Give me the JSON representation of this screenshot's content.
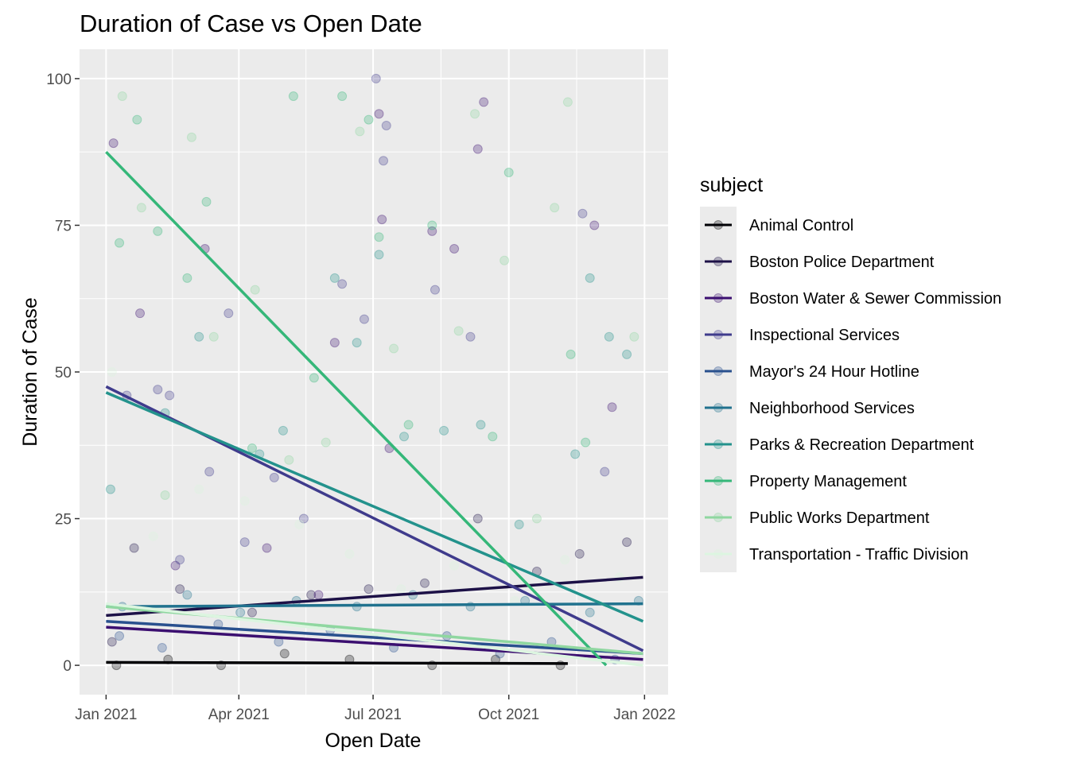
{
  "chart_data": {
    "type": "scatter",
    "title": "Duration of Case vs Open Date",
    "xlabel": "Open Date",
    "ylabel": "Duration of Case",
    "xlim": [
      "2020-12-14",
      "2022-01-17"
    ],
    "ylim": [
      -5,
      105
    ],
    "x_ticks": [
      {
        "date": "2021-01-01",
        "label": "Jan 2021"
      },
      {
        "date": "2021-04-01",
        "label": "Apr 2021"
      },
      {
        "date": "2021-07-01",
        "label": "Jul 2021"
      },
      {
        "date": "2021-10-01",
        "label": "Oct 2021"
      },
      {
        "date": "2022-01-01",
        "label": "Jan 2022"
      }
    ],
    "y_ticks": [
      0,
      25,
      50,
      75,
      100
    ],
    "grid": true,
    "legend": {
      "title": "subject",
      "position": "right"
    },
    "series": [
      {
        "name": "Animal Control",
        "color": "#000004",
        "trend": [
          [
            "2021-01-01",
            0.5
          ],
          [
            "2021-11-10",
            0.3
          ]
        ],
        "points": [
          [
            "2021-01-08",
            0
          ],
          [
            "2021-02-12",
            1
          ],
          [
            "2021-03-20",
            0
          ],
          [
            "2021-05-02",
            2
          ],
          [
            "2021-06-15",
            1
          ],
          [
            "2021-08-10",
            0
          ],
          [
            "2021-09-22",
            1
          ],
          [
            "2021-11-05",
            0
          ]
        ]
      },
      {
        "name": "Boston Police Department",
        "color": "#1D1147",
        "trend": [
          [
            "2021-01-01",
            8.5
          ],
          [
            "2021-12-31",
            15
          ]
        ],
        "points": [
          [
            "2021-01-05",
            4
          ],
          [
            "2021-01-20",
            20
          ],
          [
            "2021-02-20",
            13
          ],
          [
            "2021-04-10",
            9
          ],
          [
            "2021-05-20",
            12
          ],
          [
            "2021-06-28",
            13
          ],
          [
            "2021-08-05",
            14
          ],
          [
            "2021-09-10",
            25
          ],
          [
            "2021-10-20",
            16
          ],
          [
            "2021-11-18",
            19
          ],
          [
            "2021-12-20",
            21
          ]
        ]
      },
      {
        "name": "Boston Water & Sewer Commission",
        "color": "#3B0F70",
        "trend": [
          [
            "2021-01-01",
            6.5
          ],
          [
            "2021-12-31",
            1
          ]
        ],
        "points": [
          [
            "2021-01-06",
            89
          ],
          [
            "2021-01-24",
            60
          ],
          [
            "2021-02-17",
            17
          ],
          [
            "2021-03-09",
            71
          ],
          [
            "2021-04-20",
            20
          ],
          [
            "2021-05-25",
            12
          ],
          [
            "2021-06-05",
            55
          ],
          [
            "2021-07-05",
            94
          ],
          [
            "2021-07-07",
            76
          ],
          [
            "2021-07-12",
            37
          ],
          [
            "2021-08-10",
            74
          ],
          [
            "2021-08-25",
            71
          ],
          [
            "2021-09-10",
            88
          ],
          [
            "2021-09-14",
            96
          ],
          [
            "2021-11-28",
            75
          ],
          [
            "2021-12-10",
            44
          ]
        ]
      },
      {
        "name": "Inspectional Services",
        "color": "#3F3B8C",
        "trend": [
          [
            "2021-01-01",
            47.5
          ],
          [
            "2021-12-31",
            2.5
          ]
        ],
        "points": [
          [
            "2021-01-15",
            46
          ],
          [
            "2021-02-05",
            47
          ],
          [
            "2021-02-13",
            46
          ],
          [
            "2021-02-20",
            18
          ],
          [
            "2021-03-12",
            33
          ],
          [
            "2021-03-25",
            60
          ],
          [
            "2021-04-05",
            21
          ],
          [
            "2021-04-25",
            32
          ],
          [
            "2021-05-15",
            25
          ],
          [
            "2021-06-10",
            65
          ],
          [
            "2021-06-25",
            59
          ],
          [
            "2021-07-03",
            100
          ],
          [
            "2021-07-08",
            86
          ],
          [
            "2021-07-10",
            92
          ],
          [
            "2021-08-12",
            64
          ],
          [
            "2021-09-05",
            56
          ],
          [
            "2021-11-20",
            77
          ],
          [
            "2021-12-05",
            33
          ]
        ]
      },
      {
        "name": "Mayor's 24 Hour Hotline",
        "color": "#29508E",
        "trend": [
          [
            "2021-01-01",
            7.5
          ],
          [
            "2021-12-31",
            2
          ]
        ],
        "points": [
          [
            "2021-01-10",
            5
          ],
          [
            "2021-02-08",
            3
          ],
          [
            "2021-03-18",
            7
          ],
          [
            "2021-04-28",
            4
          ],
          [
            "2021-06-02",
            6
          ],
          [
            "2021-07-15",
            3
          ],
          [
            "2021-08-20",
            5
          ],
          [
            "2021-09-25",
            2
          ],
          [
            "2021-10-30",
            4
          ],
          [
            "2021-12-12",
            1
          ]
        ]
      },
      {
        "name": "Neighborhood Services",
        "color": "#21728E",
        "trend": [
          [
            "2021-01-01",
            10
          ],
          [
            "2021-12-31",
            10.5
          ]
        ],
        "points": [
          [
            "2021-01-12",
            10
          ],
          [
            "2021-02-25",
            12
          ],
          [
            "2021-04-02",
            9
          ],
          [
            "2021-05-10",
            11
          ],
          [
            "2021-06-20",
            10
          ],
          [
            "2021-07-28",
            12
          ],
          [
            "2021-09-05",
            10
          ],
          [
            "2021-10-12",
            11
          ],
          [
            "2021-11-25",
            9
          ],
          [
            "2021-12-28",
            11
          ]
        ]
      },
      {
        "name": "Parks & Recreation Department",
        "color": "#23928C",
        "trend": [
          [
            "2021-01-01",
            46.5
          ],
          [
            "2021-12-31",
            7.5
          ]
        ],
        "points": [
          [
            "2021-01-04",
            30
          ],
          [
            "2021-02-10",
            43
          ],
          [
            "2021-03-05",
            56
          ],
          [
            "2021-04-15",
            36
          ],
          [
            "2021-05-01",
            40
          ],
          [
            "2021-06-05",
            66
          ],
          [
            "2021-06-20",
            55
          ],
          [
            "2021-07-05",
            70
          ],
          [
            "2021-07-22",
            39
          ],
          [
            "2021-08-18",
            40
          ],
          [
            "2021-09-12",
            41
          ],
          [
            "2021-10-08",
            24
          ],
          [
            "2021-11-15",
            36
          ],
          [
            "2021-11-25",
            66
          ],
          [
            "2021-12-08",
            56
          ],
          [
            "2021-12-20",
            53
          ]
        ]
      },
      {
        "name": "Property Management",
        "color": "#35B779",
        "trend": [
          [
            "2021-01-01",
            87.5
          ],
          [
            "2021-12-06",
            0
          ]
        ],
        "points": [
          [
            "2021-01-10",
            72
          ],
          [
            "2021-01-22",
            93
          ],
          [
            "2021-02-05",
            74
          ],
          [
            "2021-02-25",
            66
          ],
          [
            "2021-03-10",
            79
          ],
          [
            "2021-04-10",
            37
          ],
          [
            "2021-05-08",
            97
          ],
          [
            "2021-05-22",
            49
          ],
          [
            "2021-06-10",
            97
          ],
          [
            "2021-06-28",
            93
          ],
          [
            "2021-07-05",
            73
          ],
          [
            "2021-07-25",
            41
          ],
          [
            "2021-08-10",
            75
          ],
          [
            "2021-09-20",
            39
          ],
          [
            "2021-10-01",
            84
          ],
          [
            "2021-11-12",
            53
          ],
          [
            "2021-11-22",
            38
          ]
        ]
      },
      {
        "name": "Public Works Department",
        "color": "#8FD7A0",
        "trend": [
          [
            "2021-01-01",
            10
          ],
          [
            "2021-12-31",
            2
          ]
        ],
        "points": [
          [
            "2021-01-12",
            97
          ],
          [
            "2021-01-25",
            78
          ],
          [
            "2021-02-10",
            29
          ],
          [
            "2021-02-28",
            90
          ],
          [
            "2021-03-15",
            56
          ],
          [
            "2021-04-12",
            64
          ],
          [
            "2021-05-05",
            35
          ],
          [
            "2021-05-30",
            38
          ],
          [
            "2021-06-22",
            91
          ],
          [
            "2021-07-15",
            54
          ],
          [
            "2021-08-28",
            57
          ],
          [
            "2021-09-08",
            94
          ],
          [
            "2021-09-28",
            69
          ],
          [
            "2021-10-20",
            25
          ],
          [
            "2021-11-01",
            78
          ],
          [
            "2021-11-10",
            96
          ],
          [
            "2021-12-25",
            56
          ]
        ]
      },
      {
        "name": "Transportation - Traffic Division",
        "color": "#DCF5E0",
        "trend": [
          [
            "2021-01-01",
            10.5
          ],
          [
            "2021-12-31",
            0
          ]
        ],
        "points": [
          [
            "2021-01-05",
            50
          ],
          [
            "2021-02-02",
            22
          ],
          [
            "2021-03-05",
            30
          ],
          [
            "2021-04-05",
            28
          ],
          [
            "2021-05-12",
            24
          ],
          [
            "2021-06-15",
            19
          ],
          [
            "2021-07-20",
            13
          ],
          [
            "2021-08-25",
            17
          ],
          [
            "2021-10-05",
            11
          ],
          [
            "2021-11-08",
            18
          ],
          [
            "2021-12-15",
            15
          ]
        ]
      }
    ]
  }
}
